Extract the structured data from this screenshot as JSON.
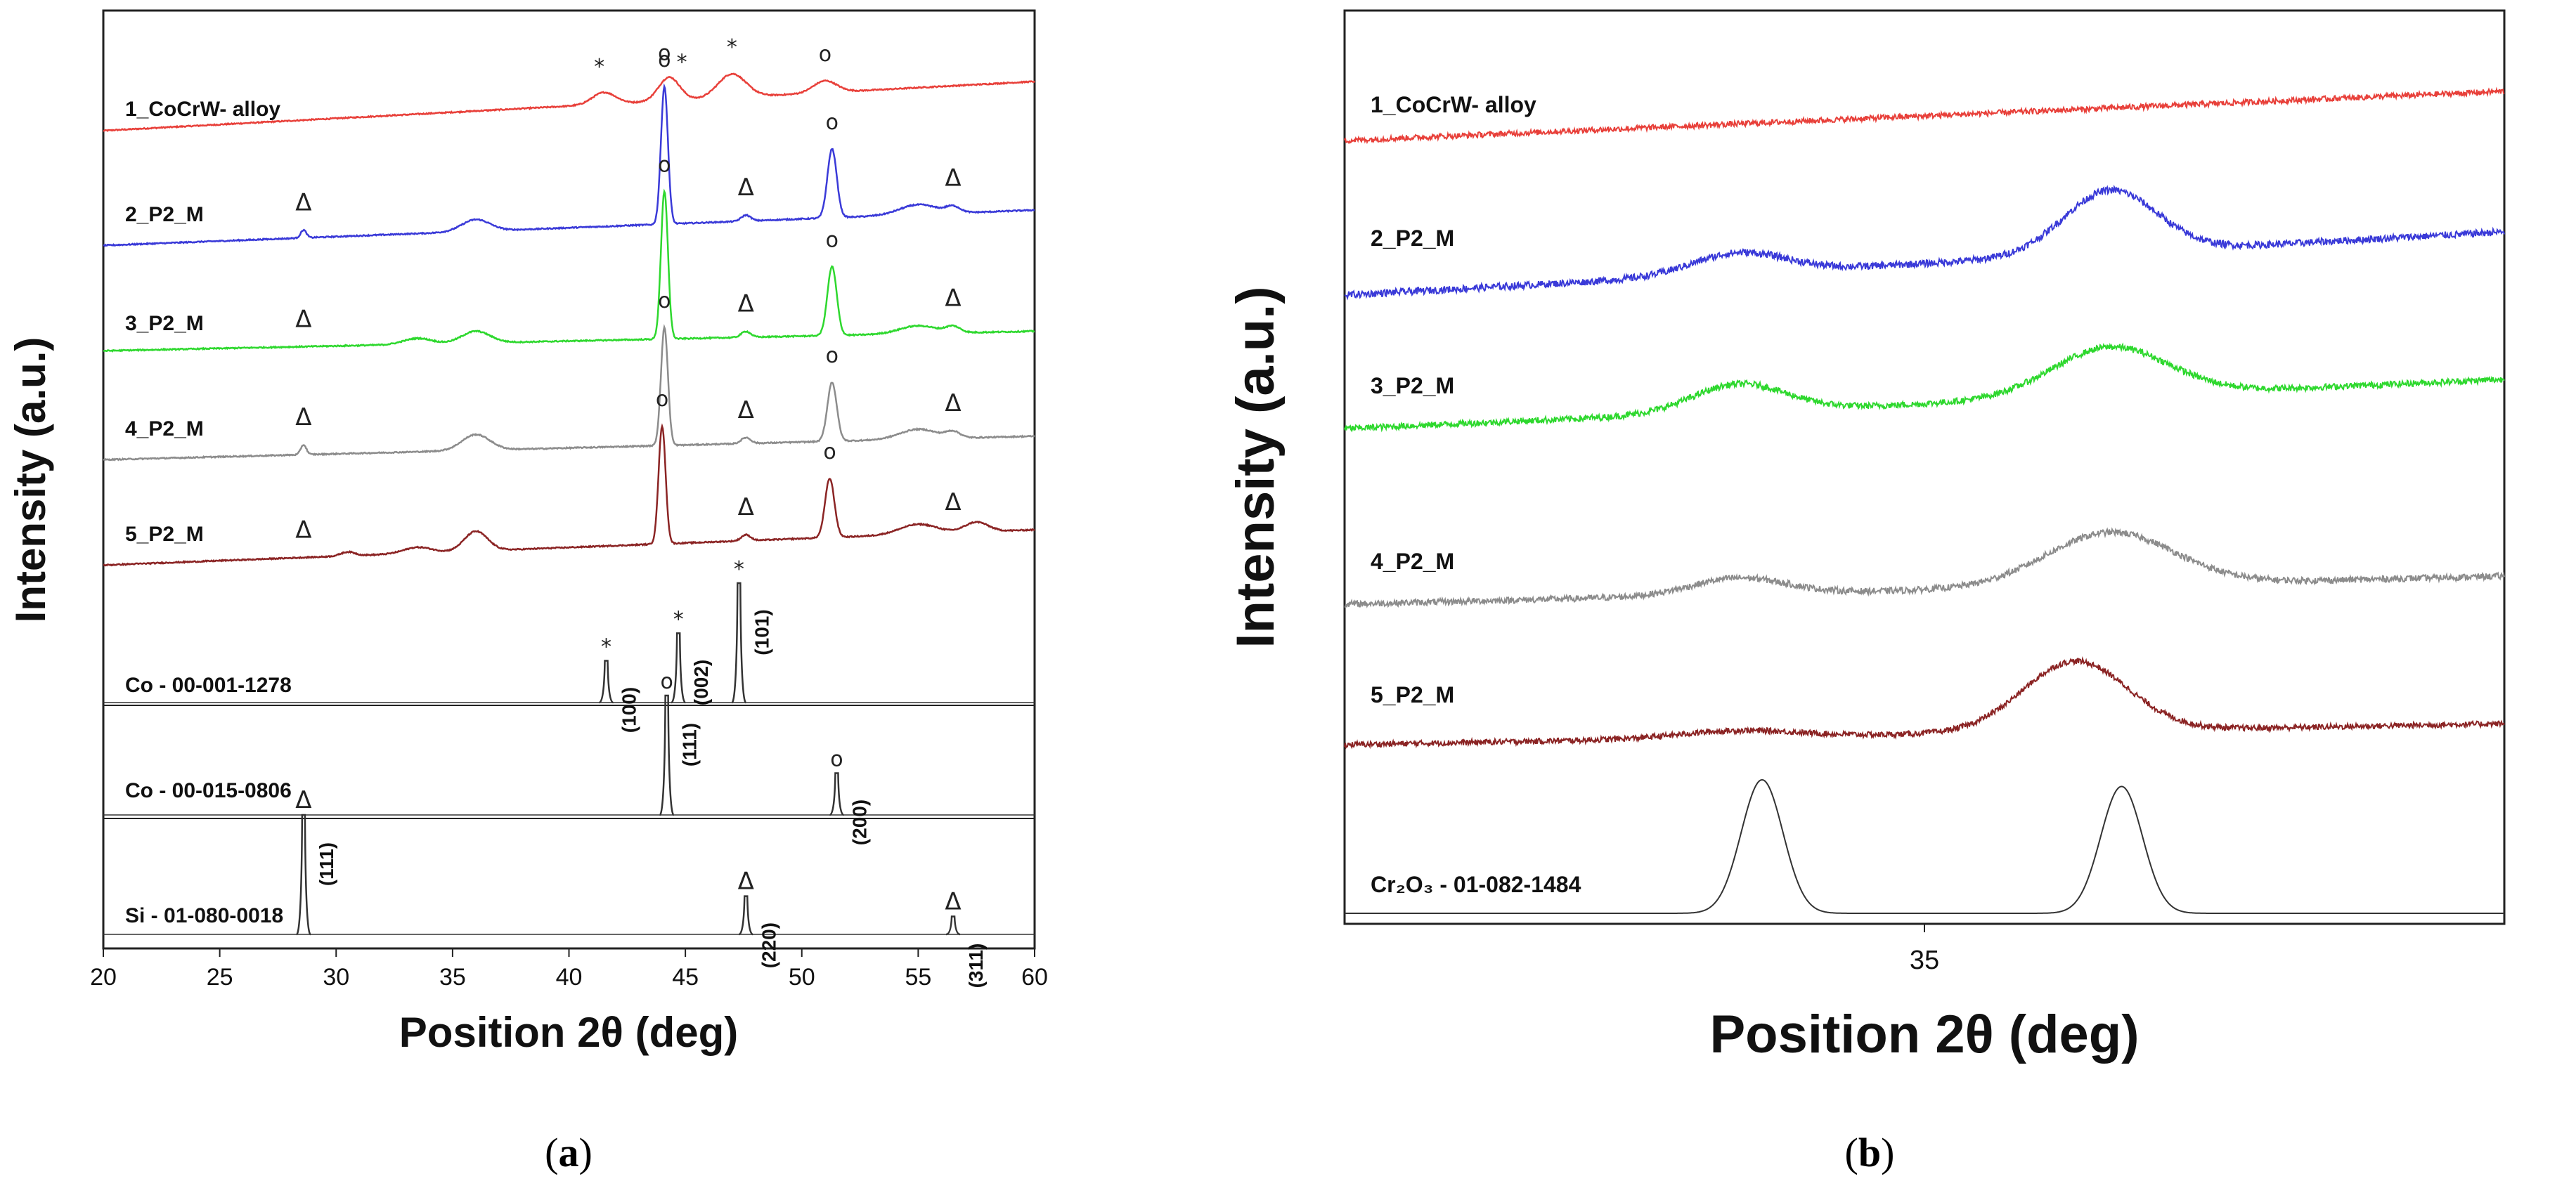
{
  "chart_data": [
    {
      "panel": "(a)",
      "panel_letter": "a",
      "type": "line",
      "xlabel": "Position 2θ (deg)",
      "ylabel": "Intensity (a.u.)",
      "xlim": [
        20,
        60
      ],
      "xticks": [
        20,
        25,
        30,
        35,
        40,
        45,
        50,
        55,
        60
      ],
      "series": [
        {
          "name": "1_CoCrW- alloy",
          "color": "#e8403a",
          "y0": 0.05,
          "y1": 0.3,
          "noise": 0.006,
          "peaks": [
            [
              41.5,
              0.06,
              0.5
            ],
            [
              44.3,
              0.12,
              0.45
            ],
            [
              47.0,
              0.12,
              0.6
            ],
            [
              51.0,
              0.06,
              0.5
            ]
          ],
          "markers": [
            {
              "x": 41.3,
              "s": "*"
            },
            {
              "x": 44.1,
              "s": "o"
            },
            {
              "x": 44.85,
              "s": "*"
            },
            {
              "x": 47.0,
              "s": "*"
            },
            {
              "x": 51.0,
              "s": "o"
            }
          ]
        },
        {
          "name": "2_P2_M",
          "color": "#3a3ad8",
          "y0": 0.02,
          "y1": 0.2,
          "noise": 0.006,
          "peaks": [
            [
              28.6,
              0.04,
              0.12
            ],
            [
              36.0,
              0.06,
              0.6
            ],
            [
              44.1,
              0.7,
              0.15
            ],
            [
              47.6,
              0.03,
              0.2
            ],
            [
              51.3,
              0.35,
              0.2
            ],
            [
              55.0,
              0.05,
              0.8
            ],
            [
              56.5,
              0.03,
              0.3
            ]
          ],
          "markers": [
            {
              "x": 28.6,
              "s": "Δ"
            },
            {
              "x": 44.1,
              "s": "o"
            },
            {
              "x": 47.6,
              "s": "Δ"
            },
            {
              "x": 51.3,
              "s": "o"
            },
            {
              "x": 56.5,
              "s": "Δ"
            }
          ]
        },
        {
          "name": "3_P2_M",
          "color": "#2ed82e",
          "y0": 0.02,
          "y1": 0.12,
          "noise": 0.006,
          "peaks": [
            [
              33.5,
              0.03,
              0.6
            ],
            [
              36.0,
              0.06,
              0.6
            ],
            [
              44.1,
              0.75,
              0.15
            ],
            [
              47.6,
              0.03,
              0.2
            ],
            [
              51.3,
              0.35,
              0.2
            ],
            [
              55.0,
              0.04,
              0.8
            ],
            [
              56.5,
              0.03,
              0.3
            ]
          ],
          "markers": [
            {
              "x": 28.6,
              "s": "Δ"
            },
            {
              "x": 44.1,
              "s": "o"
            },
            {
              "x": 47.6,
              "s": "Δ"
            },
            {
              "x": 51.3,
              "s": "o"
            },
            {
              "x": 56.5,
              "s": "Δ"
            }
          ]
        },
        {
          "name": "4_P2_M",
          "color": "#8c8c8c",
          "y0": 0.02,
          "y1": 0.14,
          "noise": 0.006,
          "peaks": [
            [
              28.6,
              0.05,
              0.12
            ],
            [
              36.0,
              0.08,
              0.6
            ],
            [
              44.1,
              0.6,
              0.15
            ],
            [
              47.6,
              0.03,
              0.2
            ],
            [
              51.3,
              0.3,
              0.2
            ],
            [
              55.0,
              0.05,
              0.8
            ],
            [
              56.5,
              0.03,
              0.3
            ]
          ],
          "markers": [
            {
              "x": 28.6,
              "s": "Δ"
            },
            {
              "x": 44.1,
              "s": "o"
            },
            {
              "x": 47.6,
              "s": "Δ"
            },
            {
              "x": 51.3,
              "s": "o"
            },
            {
              "x": 56.5,
              "s": "Δ"
            }
          ]
        },
        {
          "name": "5_P2_M",
          "color": "#8b2424",
          "y0": 0.02,
          "y1": 0.2,
          "noise": 0.006,
          "peaks": [
            [
              30.5,
              0.02,
              0.3
            ],
            [
              33.5,
              0.03,
              0.6
            ],
            [
              36.0,
              0.1,
              0.5
            ],
            [
              44.0,
              0.6,
              0.15
            ],
            [
              47.6,
              0.03,
              0.2
            ],
            [
              51.2,
              0.3,
              0.2
            ],
            [
              55.0,
              0.05,
              0.8
            ],
            [
              57.5,
              0.05,
              0.5
            ]
          ],
          "markers": [
            {
              "x": 28.6,
              "s": "Δ"
            },
            {
              "x": 44.0,
              "s": "o"
            },
            {
              "x": 47.6,
              "s": "Δ"
            },
            {
              "x": 51.2,
              "s": "o"
            },
            {
              "x": 56.5,
              "s": "Δ"
            }
          ]
        }
      ],
      "references": [
        {
          "name": "Co - 00-001-1278",
          "color": "#333333",
          "sym": "*",
          "peaks": [
            {
              "x": 41.6,
              "h": 0.35,
              "hkl": "(100)"
            },
            {
              "x": 44.7,
              "h": 0.58,
              "hkl": "(002)"
            },
            {
              "x": 47.3,
              "h": 1.0,
              "hkl": "(101)"
            }
          ]
        },
        {
          "name": "Co - 00-015-0806",
          "color": "#333333",
          "sym": "o",
          "peaks": [
            {
              "x": 44.2,
              "h": 1.0,
              "hkl": "(111)"
            },
            {
              "x": 51.5,
              "h": 0.35,
              "hkl": "(200)"
            }
          ]
        },
        {
          "name": "Si - 01-080-0018",
          "color": "#333333",
          "sym": "Δ",
          "peaks": [
            {
              "x": 28.6,
              "h": 1.0,
              "hkl": "(111)"
            },
            {
              "x": 47.6,
              "h": 0.32,
              "hkl": "(220)"
            },
            {
              "x": 56.5,
              "h": 0.15,
              "hkl": "(311)"
            }
          ]
        }
      ]
    },
    {
      "panel": "(b)",
      "panel_letter": "b",
      "type": "line",
      "xlabel": "Position 2θ (deg)",
      "ylabel": "Intensity (a.u.)",
      "xlim": [
        30,
        40
      ],
      "xticks": [
        35
      ],
      "series": [
        {
          "name": "1_CoCrW- alloy",
          "color": "#e8403a",
          "y0": 0.0,
          "y1": 0.35,
          "noise": 0.04,
          "peaks": []
        },
        {
          "name": "2_P2_M",
          "color": "#3a3ad8",
          "y0": 0.0,
          "y1": 0.45,
          "noise": 0.05,
          "peaks": [
            [
              33.4,
              0.15,
              0.4
            ],
            [
              36.6,
              0.45,
              0.4
            ]
          ]
        },
        {
          "name": "3_P2_M",
          "color": "#2ed82e",
          "y0": 0.0,
          "y1": 0.35,
          "noise": 0.045,
          "peaks": [
            [
              33.4,
              0.2,
              0.4
            ],
            [
              36.6,
              0.35,
              0.5
            ]
          ]
        },
        {
          "name": "4_P2_M",
          "color": "#8c8c8c",
          "y0": 0.0,
          "y1": 0.2,
          "noise": 0.045,
          "peaks": [
            [
              33.4,
              0.12,
              0.4
            ],
            [
              36.6,
              0.38,
              0.55
            ]
          ]
        },
        {
          "name": "5_P2_M",
          "color": "#8b2424",
          "y0": 0.0,
          "y1": 0.15,
          "noise": 0.04,
          "peaks": [
            [
              33.4,
              0.05,
              0.5
            ],
            [
              36.3,
              0.5,
              0.45
            ]
          ]
        }
      ],
      "references": [
        {
          "name": "Cr₂O₃ - 01-082-1484",
          "color": "#333333",
          "peaks": [
            {
              "x": 33.6,
              "h": 1.0,
              "w": 0.18
            },
            {
              "x": 36.7,
              "h": 0.95,
              "w": 0.18
            }
          ]
        }
      ]
    }
  ]
}
